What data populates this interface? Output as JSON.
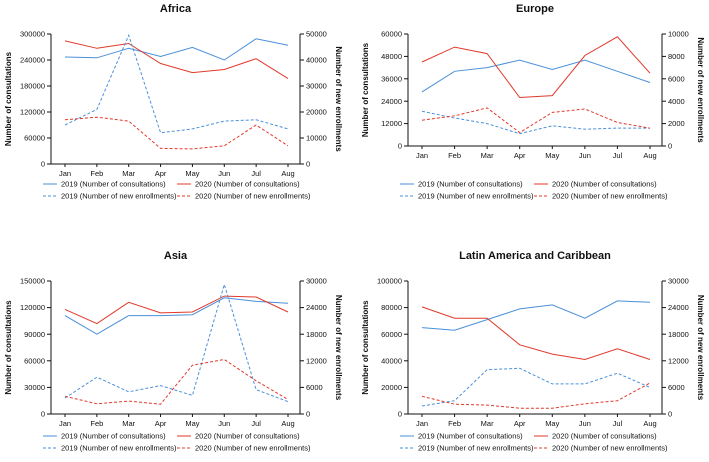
{
  "colors": {
    "2019": "#4a90d9",
    "2020": "#e0392b",
    "axis": "#111111"
  },
  "chart_data": [
    {
      "type": "line",
      "title": "Africa",
      "categories": [
        "Jan",
        "Feb",
        "Mar",
        "Apr",
        "May",
        "Jun",
        "Jul",
        "Aug"
      ],
      "ylabel": "Number of consultations",
      "y2label": "Number of new enrollments",
      "ylim": [
        0,
        300000
      ],
      "y2lim": [
        0,
        50000
      ],
      "yticks": [
        0,
        60000,
        120000,
        180000,
        240000,
        300000
      ],
      "y2ticks": [
        0,
        10000,
        20000,
        30000,
        40000,
        50000
      ],
      "series": [
        {
          "name": "2019 (Number of consultations)",
          "year": "2019",
          "axis": "left",
          "dashed": false,
          "values": [
            247000,
            245000,
            267000,
            248000,
            269000,
            240000,
            289000,
            274000
          ]
        },
        {
          "name": "2020 (Number of consultations)",
          "year": "2020",
          "axis": "left",
          "dashed": false,
          "values": [
            284000,
            267000,
            278000,
            232000,
            211000,
            218000,
            243000,
            197000
          ]
        },
        {
          "name": "2019 (Number of new enrollments)",
          "year": "2019",
          "axis": "right",
          "dashed": true,
          "values": [
            15000,
            21000,
            49500,
            12000,
            13500,
            16500,
            17000,
            13500
          ]
        },
        {
          "name": "2020 (Number of new enrollments)",
          "year": "2020",
          "axis": "right",
          "dashed": true,
          "values": [
            17000,
            18000,
            16500,
            6000,
            5800,
            7000,
            15000,
            7000
          ]
        }
      ]
    },
    {
      "type": "line",
      "title": "Europe",
      "categories": [
        "Jan",
        "Feb",
        "Mar",
        "Apr",
        "May",
        "Jun",
        "Jul",
        "Aug"
      ],
      "ylabel": "Number of consultations",
      "y2label": "Number of new enrollments",
      "ylim": [
        0,
        60000
      ],
      "y2lim": [
        0,
        10000
      ],
      "yticks": [
        0,
        12000,
        24000,
        36000,
        48000,
        60000
      ],
      "y2ticks": [
        0,
        2000,
        4000,
        6000,
        8000,
        10000
      ],
      "series": [
        {
          "name": "2019 (Number of consultations)",
          "year": "2019",
          "axis": "left",
          "dashed": false,
          "values": [
            29000,
            40000,
            42000,
            46000,
            41000,
            46000,
            40000,
            34000
          ]
        },
        {
          "name": "2020 (Number of consultations)",
          "year": "2020",
          "axis": "left",
          "dashed": false,
          "values": [
            45000,
            53000,
            49500,
            26000,
            27000,
            48500,
            58500,
            39000
          ]
        },
        {
          "name": "2019 (Number of new enrollments)",
          "year": "2019",
          "axis": "right",
          "dashed": true,
          "values": [
            3100,
            2500,
            2000,
            1100,
            1800,
            1500,
            1600,
            1600
          ]
        },
        {
          "name": "2020 (Number of new enrollments)",
          "year": "2020",
          "axis": "right",
          "dashed": true,
          "values": [
            2300,
            2700,
            3400,
            1200,
            3000,
            3300,
            2100,
            1600
          ]
        }
      ]
    },
    {
      "type": "line",
      "title": "Asia",
      "categories": [
        "Jan",
        "Feb",
        "Mar",
        "Apr",
        "May",
        "Jun",
        "Jul",
        "Aug"
      ],
      "ylabel": "Number of consultations",
      "y2label": "Number of new enrollments",
      "ylim": [
        0,
        150000
      ],
      "y2lim": [
        0,
        30000
      ],
      "yticks": [
        0,
        30000,
        60000,
        90000,
        120000,
        150000
      ],
      "y2ticks": [
        0,
        6000,
        12000,
        18000,
        24000,
        30000
      ],
      "series": [
        {
          "name": "2019 (Number of consultations)",
          "year": "2019",
          "axis": "left",
          "dashed": false,
          "values": [
            111000,
            90000,
            111000,
            111000,
            112000,
            131000,
            127000,
            125000
          ]
        },
        {
          "name": "2020 (Number of consultations)",
          "year": "2020",
          "axis": "left",
          "dashed": false,
          "values": [
            118000,
            102000,
            126000,
            114000,
            115000,
            133000,
            132000,
            115000
          ]
        },
        {
          "name": "2019 (Number of new enrollments)",
          "year": "2019",
          "axis": "right",
          "dashed": true,
          "values": [
            3600,
            8300,
            5000,
            6400,
            4200,
            29200,
            5500,
            2800
          ]
        },
        {
          "name": "2020 (Number of new enrollments)",
          "year": "2020",
          "axis": "right",
          "dashed": true,
          "values": [
            4000,
            2300,
            2900,
            2200,
            11000,
            12300,
            7500,
            3300
          ]
        }
      ]
    },
    {
      "type": "line",
      "title": "Latin America and Caribbean",
      "categories": [
        "Jan",
        "Feb",
        "Mar",
        "Apr",
        "May",
        "Jun",
        "Jul",
        "Aug"
      ],
      "ylabel": "Number of consultations",
      "y2label": "Number of new enrollments",
      "ylim": [
        0,
        100000
      ],
      "y2lim": [
        0,
        30000
      ],
      "yticks": [
        0,
        20000,
        40000,
        60000,
        80000,
        100000
      ],
      "y2ticks": [
        0,
        6000,
        12000,
        18000,
        24000,
        30000
      ],
      "series": [
        {
          "name": "2019 (Number of consultations)",
          "year": "2019",
          "axis": "left",
          "dashed": false,
          "values": [
            65000,
            63000,
            71000,
            79000,
            82000,
            72000,
            85000,
            84000
          ]
        },
        {
          "name": "2020 (Number of consultations)",
          "year": "2020",
          "axis": "left",
          "dashed": false,
          "values": [
            80500,
            72000,
            72000,
            52000,
            45000,
            41000,
            49000,
            41000
          ]
        },
        {
          "name": "2019 (Number of new enrollments)",
          "year": "2019",
          "axis": "right",
          "dashed": true,
          "values": [
            1800,
            3000,
            10000,
            10300,
            6800,
            6800,
            9200,
            6000
          ]
        },
        {
          "name": "2020 (Number of new enrollments)",
          "year": "2020",
          "axis": "right",
          "dashed": true,
          "values": [
            4000,
            2200,
            2000,
            1300,
            1300,
            2300,
            3000,
            7000
          ]
        }
      ]
    }
  ]
}
